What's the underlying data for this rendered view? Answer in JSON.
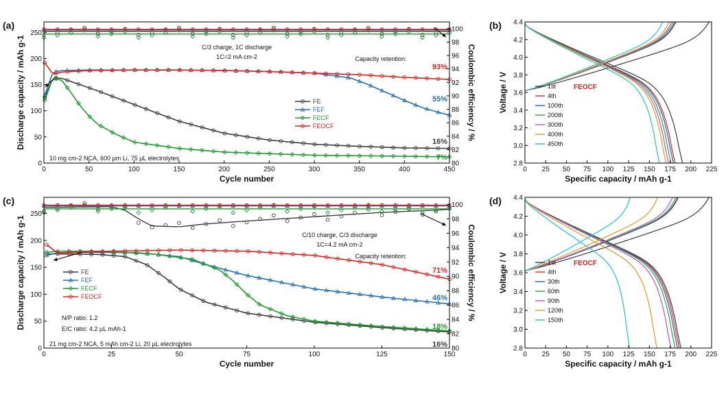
{
  "chart_data": [
    {
      "panel": "(a)",
      "type": "scatter",
      "xlabel": "Cycle number",
      "ylabel": "Discharge capacity / mAh g-1",
      "y2label": "Coulombic efficiency / %",
      "xlim": [
        0,
        450
      ],
      "ylim": [
        0,
        270
      ],
      "y2lim": [
        80,
        101
      ],
      "xticks": [
        0,
        50,
        100,
        150,
        200,
        250,
        300,
        350,
        400,
        450
      ],
      "yticks": [
        0,
        50,
        100,
        150,
        200,
        250
      ],
      "y2ticks": [
        80,
        82,
        84,
        86,
        88,
        90,
        92,
        94,
        96,
        98,
        100
      ],
      "legend": [
        "FE",
        "FEF",
        "FECF",
        "FEOCF"
      ],
      "annotations": [
        "C/3 charge, 1C discharge",
        "1C=2 mA cm-2",
        "Capacity retention:",
        "10 mg cm-2 NCA, 600 µm Li, 75 µL electrolytes"
      ],
      "retention": [
        {
          "series": "FEOCF",
          "label": "93%"
        },
        {
          "series": "FEF",
          "label": "55%"
        },
        {
          "series": "FE",
          "label": "16%"
        },
        {
          "series": "FECF",
          "label": "7%"
        }
      ],
      "series": [
        {
          "name": "FE",
          "x": [
            1,
            10,
            20,
            40,
            60,
            100,
            150,
            200,
            250,
            300,
            350,
            400,
            450
          ],
          "y": [
            125,
            163,
            162,
            150,
            138,
            112,
            80,
            57,
            44,
            36,
            32,
            29,
            28
          ]
        },
        {
          "name": "FEF",
          "x": [
            1,
            10,
            20,
            50,
            100,
            150,
            200,
            250,
            300,
            340,
            360,
            380,
            400,
            420,
            440,
            450
          ],
          "y": [
            130,
            174,
            177,
            178,
            178,
            178,
            177,
            175,
            172,
            163,
            150,
            135,
            120,
            106,
            96,
            92
          ]
        },
        {
          "name": "FECF",
          "x": [
            1,
            10,
            20,
            30,
            40,
            50,
            60,
            80,
            100,
            150,
            200,
            300,
            450
          ],
          "y": [
            120,
            163,
            158,
            135,
            110,
            90,
            74,
            55,
            40,
            28,
            21,
            15,
            12
          ]
        },
        {
          "name": "FEOCF",
          "x": [
            1,
            10,
            20,
            50,
            100,
            150,
            200,
            250,
            300,
            350,
            400,
            450
          ],
          "y": [
            192,
            170,
            174,
            177,
            178,
            178,
            177,
            175,
            172,
            169,
            164,
            160
          ]
        }
      ],
      "ce_series": [
        {
          "name": "FE",
          "x": [
            0,
            450
          ],
          "y": [
            99.6,
            99.6
          ]
        },
        {
          "name": "FEF",
          "x": [
            0,
            450
          ],
          "y": [
            99.8,
            99.8
          ]
        },
        {
          "name": "FECF",
          "x": [
            0,
            450
          ],
          "y": [
            99.2,
            99.2
          ]
        },
        {
          "name": "FEOCF",
          "x": [
            0,
            450
          ],
          "y": [
            99.9,
            99.9
          ]
        }
      ]
    },
    {
      "panel": "(b)",
      "type": "line",
      "xlabel": "Specific capacity / mAh g-1",
      "ylabel": "Voltage / V",
      "xlim": [
        0,
        225
      ],
      "ylim": [
        2.8,
        4.4
      ],
      "xticks": [
        0,
        25,
        50,
        75,
        100,
        125,
        150,
        175,
        200,
        225
      ],
      "yticks": [
        2.8,
        3.0,
        3.2,
        3.4,
        3.6,
        3.8,
        4.0,
        4.2,
        4.4
      ],
      "legend_title": "FEOCF",
      "series": [
        {
          "name": "1st",
          "charge_end": 222,
          "discharge_end": 190
        },
        {
          "name": "4th",
          "charge_end": 182,
          "discharge_end": 181
        },
        {
          "name": "100th",
          "charge_end": 181,
          "discharge_end": 179
        },
        {
          "name": "200th",
          "charge_end": 179,
          "discharge_end": 176
        },
        {
          "name": "300th",
          "charge_end": 177,
          "discharge_end": 173
        },
        {
          "name": "400th",
          "charge_end": 174,
          "discharge_end": 170
        },
        {
          "name": "450th",
          "charge_end": 166,
          "discharge_end": 162
        }
      ]
    },
    {
      "panel": "(c)",
      "type": "scatter",
      "xlabel": "Cycle number",
      "ylabel": "Discharge capacity / mAh g-1",
      "y2label": "Coulombic efficiency / %",
      "xlim": [
        0,
        150
      ],
      "ylim": [
        0,
        280
      ],
      "y2lim": [
        80,
        101
      ],
      "xticks": [
        0,
        25,
        50,
        75,
        100,
        125,
        150
      ],
      "yticks": [
        0,
        50,
        100,
        150,
        200,
        250
      ],
      "y2ticks": [
        80,
        82,
        84,
        86,
        88,
        90,
        92,
        94,
        96,
        98,
        100
      ],
      "legend": [
        "FE",
        "FEF",
        "FECF",
        "FEOCF"
      ],
      "annotations": [
        "C/10 charge, C/3 discharge",
        "1C=4.2 mA cm-2",
        "Capacity retention:",
        "N/P ratio: 1.2",
        "E/C ratio: 4.2 µL mAh-1",
        "21 mg cm-2 NCA, 5 mAh cm-2 Li, 20 µL electrolytes"
      ],
      "retention": [
        {
          "series": "FEOCF",
          "label": "71%"
        },
        {
          "series": "FEF",
          "label": "46%"
        },
        {
          "series": "FECF",
          "label": "18%"
        },
        {
          "series": "FE",
          "label": "16%"
        }
      ],
      "series": [
        {
          "name": "FE",
          "x": [
            1,
            5,
            20,
            30,
            38,
            45,
            50,
            60,
            75,
            100,
            125,
            150
          ],
          "y": [
            175,
            175,
            174,
            170,
            155,
            130,
            110,
            85,
            65,
            48,
            38,
            30
          ]
        },
        {
          "name": "FEF",
          "x": [
            1,
            5,
            20,
            35,
            50,
            60,
            75,
            100,
            125,
            150
          ],
          "y": [
            172,
            177,
            178,
            177,
            170,
            155,
            135,
            110,
            95,
            82
          ]
        },
        {
          "name": "FECF",
          "x": [
            1,
            5,
            20,
            40,
            55,
            65,
            70,
            75,
            80,
            90,
            100,
            125,
            150
          ],
          "y": [
            178,
            180,
            180,
            175,
            165,
            145,
            125,
            100,
            80,
            60,
            50,
            40,
            32
          ]
        },
        {
          "name": "FEOCF",
          "x": [
            1,
            5,
            25,
            50,
            75,
            100,
            125,
            150
          ],
          "y": [
            192,
            177,
            180,
            182,
            180,
            172,
            155,
            128
          ]
        }
      ],
      "ce_series": [
        {
          "name": "FE",
          "x": [
            0,
            25,
            30,
            35,
            40,
            50,
            60,
            75,
            100,
            125,
            150
          ],
          "y": [
            99.6,
            99.7,
            99.2,
            98.0,
            97.0,
            96.9,
            97.3,
            97.7,
            98.3,
            98.9,
            99.3
          ]
        },
        {
          "name": "FEF",
          "x": [
            0,
            150
          ],
          "y": [
            99.8,
            99.8
          ]
        },
        {
          "name": "FECF",
          "x": [
            0,
            150
          ],
          "y": [
            99.4,
            99.4
          ]
        },
        {
          "name": "FEOCF",
          "x": [
            0,
            150
          ],
          "y": [
            99.9,
            99.9
          ]
        }
      ]
    },
    {
      "panel": "(d)",
      "type": "line",
      "xlabel": "Specific capacity / mAh g-1",
      "ylabel": "Voltage / V",
      "xlim": [
        0,
        225
      ],
      "ylim": [
        2.8,
        4.4
      ],
      "xticks": [
        0,
        25,
        50,
        75,
        100,
        125,
        150,
        175,
        200,
        225
      ],
      "yticks": [
        2.8,
        3.0,
        3.2,
        3.4,
        3.6,
        3.8,
        4.0,
        4.2,
        4.4
      ],
      "legend_title": "FEOCF",
      "series": [
        {
          "name": "1st",
          "charge_end": 222,
          "discharge_end": 188
        },
        {
          "name": "4th",
          "charge_end": 185,
          "discharge_end": 186
        },
        {
          "name": "30th",
          "charge_end": 184,
          "discharge_end": 184
        },
        {
          "name": "60th",
          "charge_end": 182,
          "discharge_end": 181
        },
        {
          "name": "90th",
          "charge_end": 178,
          "discharge_end": 176
        },
        {
          "name": "120th",
          "charge_end": 160,
          "discharge_end": 159
        },
        {
          "name": "150th",
          "charge_end": 127,
          "discharge_end": 126
        }
      ]
    }
  ],
  "colors": {
    "FE": "#3a3a3a",
    "FEF": "#1f6fb5",
    "FECF": "#1e9a2e",
    "FEOCF": "#e0201c",
    "volt": [
      "#3a3a3a",
      "#e8231f",
      "#1f5fb5",
      "#27a43a",
      "#c84bc8",
      "#e09a1a",
      "#1cc2cf"
    ]
  }
}
